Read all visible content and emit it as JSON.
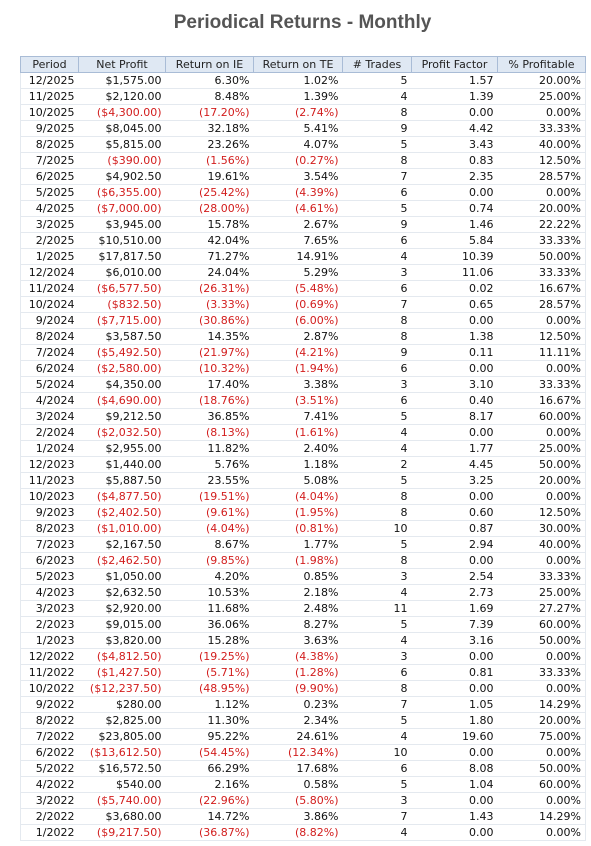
{
  "title": "Periodical Returns - Monthly",
  "table": {
    "header": [
      "Period",
      "Net Profit",
      "Return on IE",
      "Return on TE",
      "# Trades",
      "Profit Factor",
      "% Profitable"
    ],
    "rows": [
      [
        "12/2025",
        "$1,575.00",
        "6.30%",
        "1.02%",
        "5",
        "1.57",
        "20.00%"
      ],
      [
        "11/2025",
        "$2,120.00",
        "8.48%",
        "1.39%",
        "4",
        "1.39",
        "25.00%"
      ],
      [
        "10/2025",
        "($4,300.00)",
        "(17.20%)",
        "(2.74%)",
        "8",
        "0.00",
        "0.00%"
      ],
      [
        "9/2025",
        "$8,045.00",
        "32.18%",
        "5.41%",
        "9",
        "4.42",
        "33.33%"
      ],
      [
        "8/2025",
        "$5,815.00",
        "23.26%",
        "4.07%",
        "5",
        "3.43",
        "40.00%"
      ],
      [
        "7/2025",
        "($390.00)",
        "(1.56%)",
        "(0.27%)",
        "8",
        "0.83",
        "12.50%"
      ],
      [
        "6/2025",
        "$4,902.50",
        "19.61%",
        "3.54%",
        "7",
        "2.35",
        "28.57%"
      ],
      [
        "5/2025",
        "($6,355.00)",
        "(25.42%)",
        "(4.39%)",
        "6",
        "0.00",
        "0.00%"
      ],
      [
        "4/2025",
        "($7,000.00)",
        "(28.00%)",
        "(4.61%)",
        "5",
        "0.74",
        "20.00%"
      ],
      [
        "3/2025",
        "$3,945.00",
        "15.78%",
        "2.67%",
        "9",
        "1.46",
        "22.22%"
      ],
      [
        "2/2025",
        "$10,510.00",
        "42.04%",
        "7.65%",
        "6",
        "5.84",
        "33.33%"
      ],
      [
        "1/2025",
        "$17,817.50",
        "71.27%",
        "14.91%",
        "4",
        "10.39",
        "50.00%"
      ],
      [
        "12/2024",
        "$6,010.00",
        "24.04%",
        "5.29%",
        "3",
        "11.06",
        "33.33%"
      ],
      [
        "11/2024",
        "($6,577.50)",
        "(26.31%)",
        "(5.48%)",
        "6",
        "0.02",
        "16.67%"
      ],
      [
        "10/2024",
        "($832.50)",
        "(3.33%)",
        "(0.69%)",
        "7",
        "0.65",
        "28.57%"
      ],
      [
        "9/2024",
        "($7,715.00)",
        "(30.86%)",
        "(6.00%)",
        "8",
        "0.00",
        "0.00%"
      ],
      [
        "8/2024",
        "$3,587.50",
        "14.35%",
        "2.87%",
        "8",
        "1.38",
        "12.50%"
      ],
      [
        "7/2024",
        "($5,492.50)",
        "(21.97%)",
        "(4.21%)",
        "9",
        "0.11",
        "11.11%"
      ],
      [
        "6/2024",
        "($2,580.00)",
        "(10.32%)",
        "(1.94%)",
        "6",
        "0.00",
        "0.00%"
      ],
      [
        "5/2024",
        "$4,350.00",
        "17.40%",
        "3.38%",
        "3",
        "3.10",
        "33.33%"
      ],
      [
        "4/2024",
        "($4,690.00)",
        "(18.76%)",
        "(3.51%)",
        "6",
        "0.40",
        "16.67%"
      ],
      [
        "3/2024",
        "$9,212.50",
        "36.85%",
        "7.41%",
        "5",
        "8.17",
        "60.00%"
      ],
      [
        "2/2024",
        "($2,032.50)",
        "(8.13%)",
        "(1.61%)",
        "4",
        "0.00",
        "0.00%"
      ],
      [
        "1/2024",
        "$2,955.00",
        "11.82%",
        "2.40%",
        "4",
        "1.77",
        "25.00%"
      ],
      [
        "12/2023",
        "$1,440.00",
        "5.76%",
        "1.18%",
        "2",
        "4.45",
        "50.00%"
      ],
      [
        "11/2023",
        "$5,887.50",
        "23.55%",
        "5.08%",
        "5",
        "3.25",
        "20.00%"
      ],
      [
        "10/2023",
        "($4,877.50)",
        "(19.51%)",
        "(4.04%)",
        "8",
        "0.00",
        "0.00%"
      ],
      [
        "9/2023",
        "($2,402.50)",
        "(9.61%)",
        "(1.95%)",
        "8",
        "0.60",
        "12.50%"
      ],
      [
        "8/2023",
        "($1,010.00)",
        "(4.04%)",
        "(0.81%)",
        "10",
        "0.87",
        "30.00%"
      ],
      [
        "7/2023",
        "$2,167.50",
        "8.67%",
        "1.77%",
        "5",
        "2.94",
        "40.00%"
      ],
      [
        "6/2023",
        "($2,462.50)",
        "(9.85%)",
        "(1.98%)",
        "8",
        "0.00",
        "0.00%"
      ],
      [
        "5/2023",
        "$1,050.00",
        "4.20%",
        "0.85%",
        "3",
        "2.54",
        "33.33%"
      ],
      [
        "4/2023",
        "$2,632.50",
        "10.53%",
        "2.18%",
        "4",
        "2.73",
        "25.00%"
      ],
      [
        "3/2023",
        "$2,920.00",
        "11.68%",
        "2.48%",
        "11",
        "1.69",
        "27.27%"
      ],
      [
        "2/2023",
        "$9,015.00",
        "36.06%",
        "8.27%",
        "5",
        "7.39",
        "60.00%"
      ],
      [
        "1/2023",
        "$3,820.00",
        "15.28%",
        "3.63%",
        "4",
        "3.16",
        "50.00%"
      ],
      [
        "12/2022",
        "($4,812.50)",
        "(19.25%)",
        "(4.38%)",
        "3",
        "0.00",
        "0.00%"
      ],
      [
        "11/2022",
        "($1,427.50)",
        "(5.71%)",
        "(1.28%)",
        "6",
        "0.81",
        "33.33%"
      ],
      [
        "10/2022",
        "($12,237.50)",
        "(48.95%)",
        "(9.90%)",
        "8",
        "0.00",
        "0.00%"
      ],
      [
        "9/2022",
        "$280.00",
        "1.12%",
        "0.23%",
        "7",
        "1.05",
        "14.29%"
      ],
      [
        "8/2022",
        "$2,825.00",
        "11.30%",
        "2.34%",
        "5",
        "1.80",
        "20.00%"
      ],
      [
        "7/2022",
        "$23,805.00",
        "95.22%",
        "24.61%",
        "4",
        "19.60",
        "75.00%"
      ],
      [
        "6/2022",
        "($13,612.50)",
        "(54.45%)",
        "(12.34%)",
        "10",
        "0.00",
        "0.00%"
      ],
      [
        "5/2022",
        "$16,572.50",
        "66.29%",
        "17.68%",
        "6",
        "8.08",
        "50.00%"
      ],
      [
        "4/2022",
        "$540.00",
        "2.16%",
        "0.58%",
        "5",
        "1.04",
        "60.00%"
      ],
      [
        "3/2022",
        "($5,740.00)",
        "(22.96%)",
        "(5.80%)",
        "3",
        "0.00",
        "0.00%"
      ],
      [
        "2/2022",
        "$3,680.00",
        "14.72%",
        "3.86%",
        "7",
        "1.43",
        "14.29%"
      ],
      [
        "1/2022",
        "($9,217.50)",
        "(36.87%)",
        "(8.82%)",
        "4",
        "0.00",
        "0.00%"
      ]
    ]
  }
}
